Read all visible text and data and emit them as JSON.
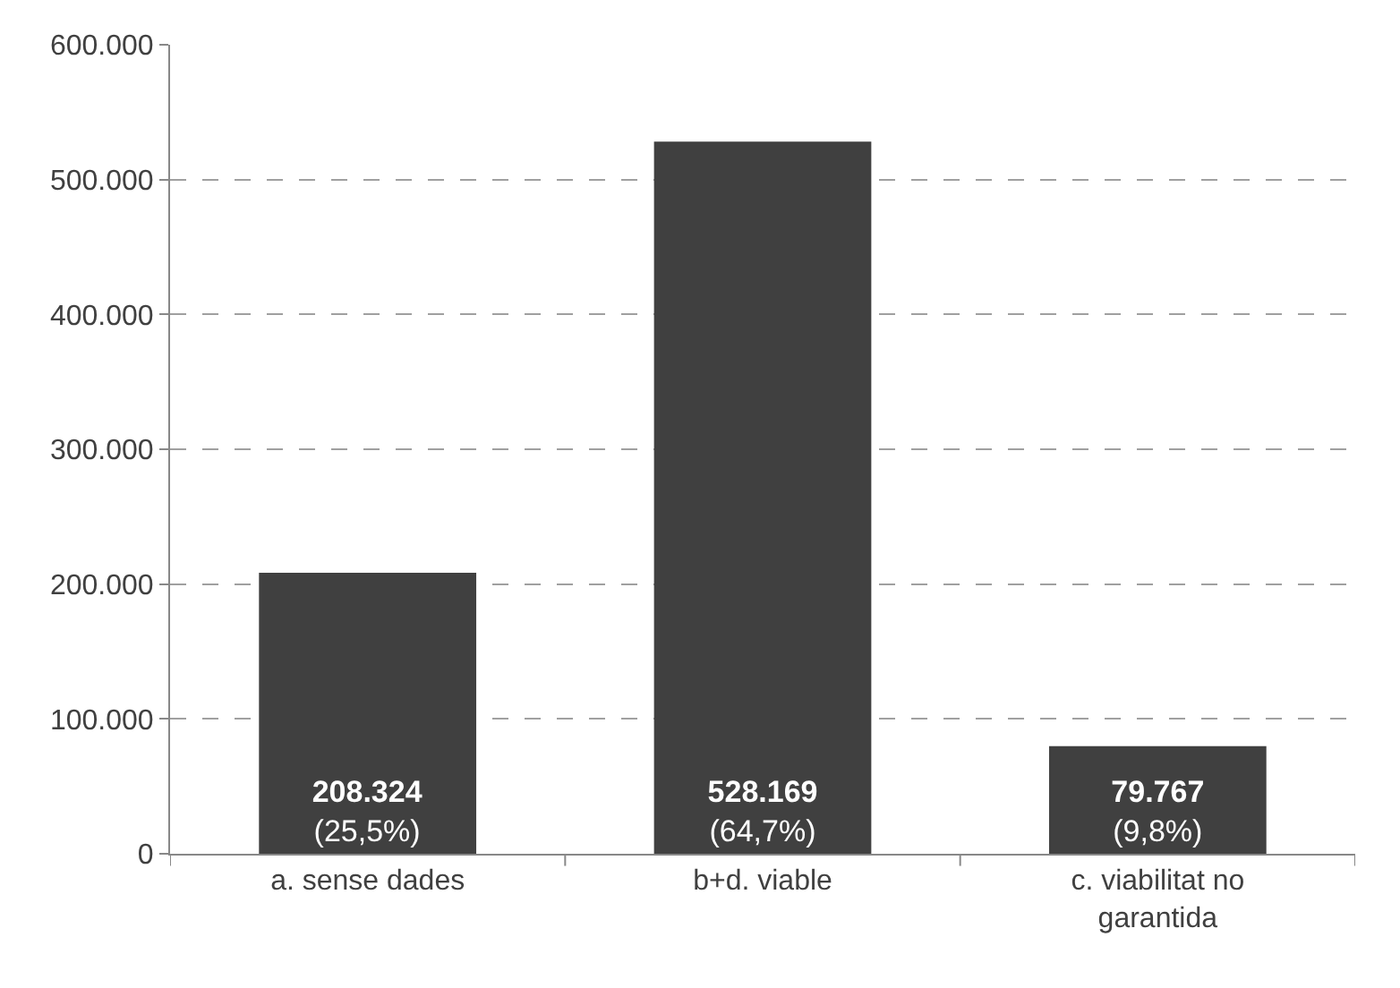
{
  "chart_data": {
    "type": "bar",
    "categories": [
      "a. sense dades",
      "b+d. viable",
      "c. viabilitat no\ngarantida"
    ],
    "values": [
      208324,
      528169,
      79767
    ],
    "color": "#404040",
    "value_labels": [
      "208.324\n(25,5%)",
      "528.169\n(64,7%)",
      "79.767\n(9,8%)"
    ],
    "ylim": [
      0,
      600000
    ],
    "yticks": [
      {
        "value": 0,
        "label": "0"
      },
      {
        "value": 100000,
        "label": "100.000"
      },
      {
        "value": 200000,
        "label": "200.000"
      },
      {
        "value": 300000,
        "label": "300.000"
      },
      {
        "value": 400000,
        "label": "400.000"
      },
      {
        "value": 500000,
        "label": "500.000"
      },
      {
        "value": 600000,
        "label": "600.000"
      }
    ],
    "grid": "y",
    "legend": false
  }
}
